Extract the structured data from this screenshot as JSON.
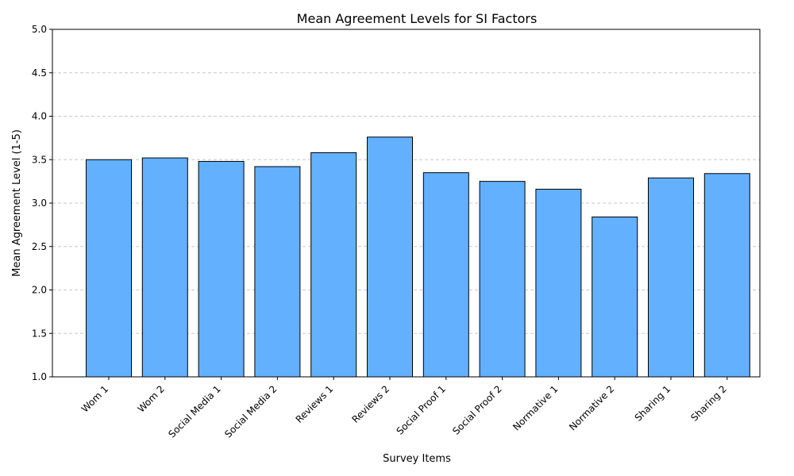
{
  "chart_data": {
    "type": "bar",
    "title": "Mean Agreement Levels for SI Factors",
    "xlabel": "Survey Items",
    "ylabel": "Mean Agreement Level (1-5)",
    "ylim": [
      1.0,
      5.0
    ],
    "yticks": [
      "1.0",
      "1.5",
      "2.0",
      "2.5",
      "3.0",
      "3.5",
      "4.0",
      "4.5",
      "5.0"
    ],
    "categories": [
      "Wom 1",
      "Wom 2",
      "Social Media 1",
      "Social Media 2",
      "Reviews 1",
      "Reviews 2",
      "Social Proof 1",
      "Social Proof 2",
      "Normative 1",
      "Normative 2",
      "Sharing 1",
      "Sharing 2"
    ],
    "values": [
      3.5,
      3.52,
      3.48,
      3.42,
      3.58,
      3.76,
      3.35,
      3.25,
      3.16,
      2.84,
      3.29,
      3.34
    ],
    "grid": "y-dashed",
    "bar_color": "#63b0ff",
    "bar_edge_color": "#000000"
  }
}
